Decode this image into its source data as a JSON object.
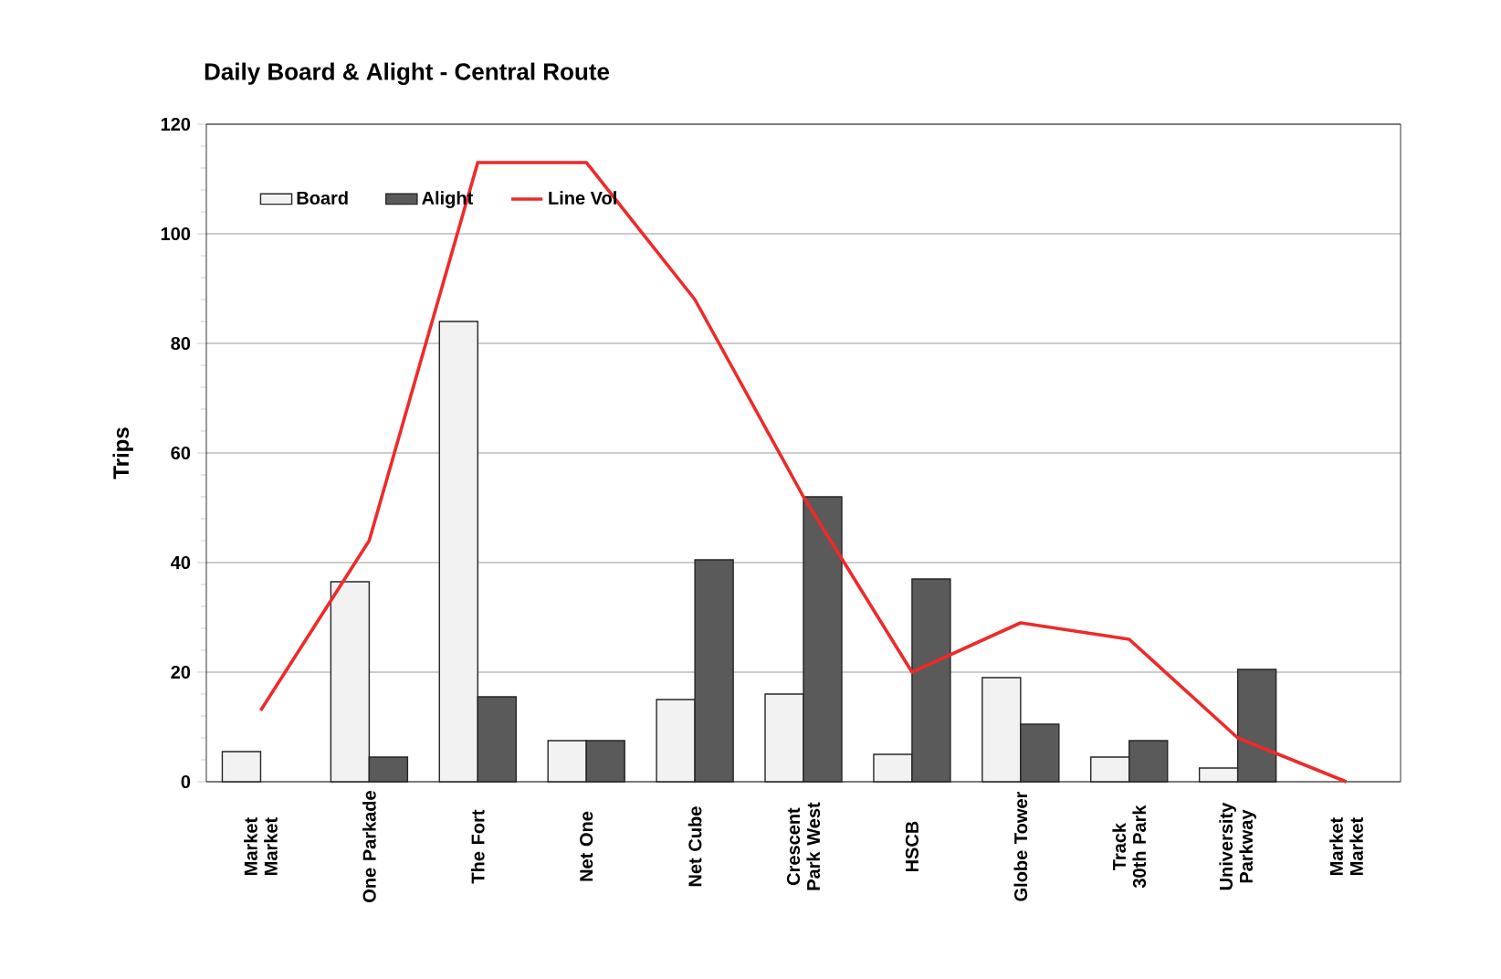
{
  "chart_data": {
    "type": "bar",
    "title": "Daily Board & Alight - Central Route",
    "ylabel": "Trips",
    "categories": [
      "Market Market",
      "One Parkade",
      "The Fort",
      "Net One",
      "Net Cube",
      "Crescent Park West",
      "HSCB",
      "Globe Tower",
      "Track 30th Park",
      "University Parkway",
      "Market Market"
    ],
    "series": [
      {
        "name": "Board",
        "color": "#f2f2f2",
        "values": [
          5.5,
          36.5,
          84,
          7.5,
          15,
          16,
          5,
          19,
          4.5,
          2.5,
          0
        ]
      },
      {
        "name": "Alight",
        "color": "#5a5a5a",
        "values": [
          0,
          4.5,
          15.5,
          7.5,
          40.5,
          52,
          37,
          10.5,
          7.5,
          20.5,
          0
        ]
      },
      {
        "name": "Line Vol",
        "type": "line",
        "color": "#ee2a2a",
        "values": [
          13,
          44,
          113,
          113,
          88,
          52,
          20,
          29,
          26,
          8,
          0
        ]
      }
    ],
    "ylim": [
      0,
      120
    ],
    "yticks": [
      0,
      20,
      40,
      60,
      80,
      100,
      120
    ],
    "grid": "y",
    "legend": "top left"
  }
}
